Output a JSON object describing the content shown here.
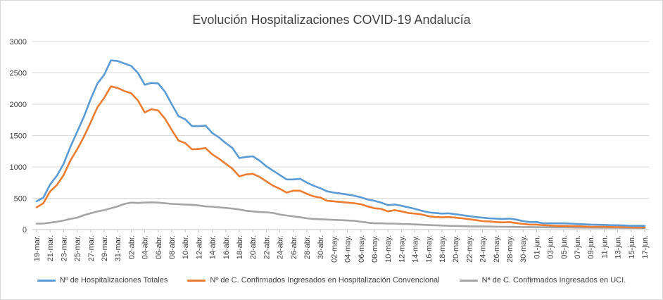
{
  "chart_data": {
    "type": "line",
    "title": "Evolución Hospitalizaciones COVID-19 Andalucía",
    "xlabel": "",
    "ylabel": "",
    "ylim": [
      0,
      3000
    ],
    "yticks": [
      "0",
      "500",
      "1000",
      "1500",
      "2000",
      "2500",
      "3000"
    ],
    "grid": "horizontal",
    "legend_position": "bottom",
    "x_tick_labels": [
      "19-mar.",
      "21-mar.",
      "23-mar.",
      "25-mar.",
      "27-mar.",
      "29-mar.",
      "31-mar.",
      "02-abr.",
      "04-abr.",
      "06-abr.",
      "08-abr.",
      "10-abr.",
      "12-abr.",
      "14-abr.",
      "16-abr.",
      "18-abr.",
      "20-abr.",
      "22-abr.",
      "24-abr.",
      "26-abr.",
      "28-abr.",
      "30-abr.",
      "02-may.",
      "04-may.",
      "06-may.",
      "08-may.",
      "10-may.",
      "12-may.",
      "14-may.",
      "16-may.",
      "18-may.",
      "20-may.",
      "22-may.",
      "24-may.",
      "26-may.",
      "28-may.",
      "30-may.",
      "01-jun.",
      "03-jun.",
      "05-jun.",
      "07-jun.",
      "09-jun.",
      "11-jun.",
      "13-jun.",
      "15-jun.",
      "17-jun."
    ],
    "x_start": "19-mar.",
    "x_end": "17-jun.",
    "series": [
      {
        "name": "Nº de Hospitalizaciones Totales",
        "color": "#5b9bd5",
        "values": [
          450,
          510,
          720,
          860,
          1050,
          1320,
          1560,
          1800,
          2080,
          2330,
          2470,
          2700,
          2690,
          2650,
          2610,
          2500,
          2310,
          2340,
          2330,
          2200,
          2000,
          1810,
          1760,
          1650,
          1650,
          1660,
          1540,
          1470,
          1380,
          1300,
          1140,
          1160,
          1170,
          1100,
          1010,
          940,
          870,
          800,
          800,
          810,
          750,
          700,
          660,
          610,
          590,
          575,
          560,
          540,
          515,
          480,
          460,
          430,
          390,
          400,
          380,
          355,
          330,
          300,
          275,
          265,
          255,
          260,
          245,
          230,
          215,
          200,
          190,
          180,
          175,
          170,
          175,
          160,
          135,
          120,
          120,
          100,
          100,
          100,
          100,
          95,
          90,
          85,
          80,
          78,
          75,
          70,
          70,
          65,
          60,
          60,
          60
        ]
      },
      {
        "name": "Nº de C. Confirmados Ingresados en Hospitalización Convencional",
        "color": "#ed7d31",
        "values": [
          355,
          420,
          610,
          710,
          870,
          1100,
          1280,
          1480,
          1710,
          1950,
          2100,
          2285,
          2260,
          2210,
          2175,
          2060,
          1870,
          1920,
          1900,
          1770,
          1590,
          1420,
          1380,
          1280,
          1285,
          1300,
          1200,
          1130,
          1050,
          970,
          850,
          880,
          890,
          840,
          770,
          700,
          650,
          590,
          620,
          620,
          570,
          530,
          510,
          460,
          450,
          440,
          430,
          420,
          405,
          370,
          340,
          330,
          290,
          310,
          290,
          265,
          255,
          240,
          215,
          200,
          195,
          200,
          190,
          180,
          165,
          150,
          135,
          130,
          120,
          115,
          120,
          105,
          90,
          80,
          80,
          70,
          65,
          60,
          60,
          55,
          55,
          50,
          45,
          45,
          45,
          40,
          40,
          40,
          35,
          35,
          35
        ]
      },
      {
        "name": "Nª de C. Confirmados Ingresados en UCI.",
        "color": "#a5a5a5",
        "values": [
          95,
          95,
          110,
          125,
          145,
          170,
          190,
          230,
          260,
          290,
          310,
          340,
          370,
          410,
          430,
          425,
          430,
          435,
          430,
          420,
          410,
          405,
          400,
          395,
          385,
          370,
          365,
          355,
          345,
          335,
          320,
          300,
          290,
          280,
          275,
          265,
          240,
          225,
          210,
          195,
          180,
          170,
          165,
          160,
          155,
          150,
          145,
          140,
          125,
          110,
          100,
          100,
          95,
          95,
          90,
          88,
          82,
          78,
          72,
          68,
          65,
          60,
          58,
          55,
          52,
          50,
          50,
          48,
          46,
          45,
          44,
          43,
          40,
          40,
          38,
          37,
          36,
          35,
          34,
          33,
          32,
          31,
          30,
          30,
          29,
          28,
          28,
          27,
          27,
          26,
          26
        ]
      }
    ]
  }
}
